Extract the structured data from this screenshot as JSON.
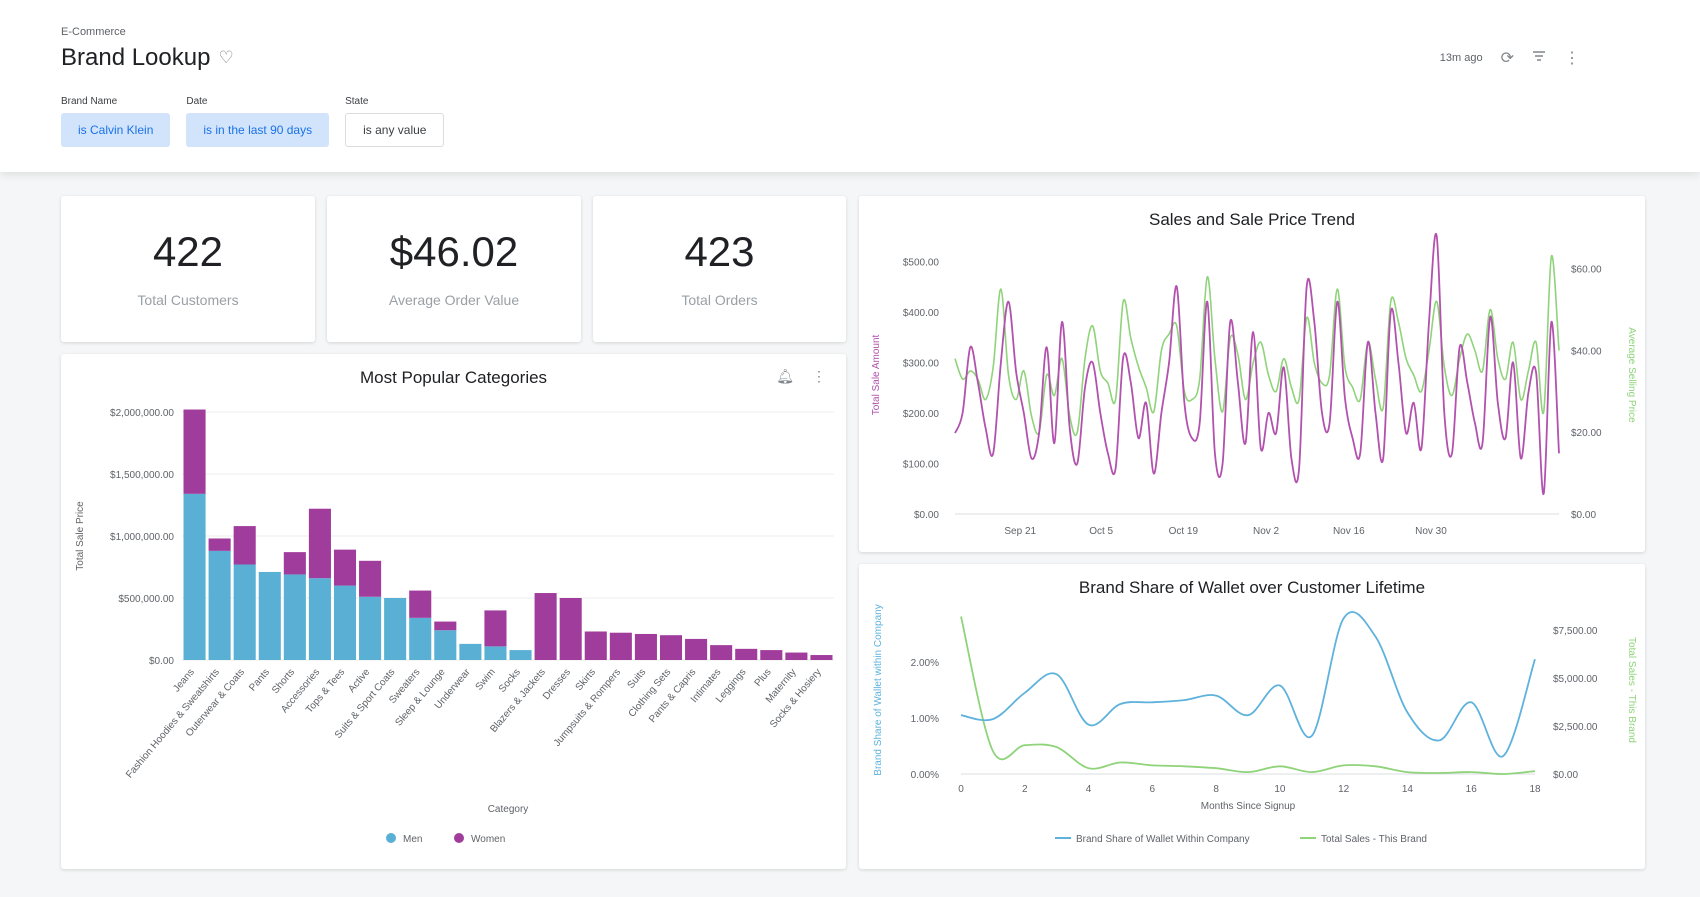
{
  "header": {
    "breadcrumb": "E-Commerce",
    "title": "Brand Lookup",
    "last_updated": "13m ago",
    "icons": {
      "favorite": "heart-outline-icon",
      "refresh": "refresh-icon",
      "filter": "filter-icon",
      "more": "more-vert-icon"
    }
  },
  "filters": [
    {
      "label": "Brand Name",
      "value": "is Calvin Klein",
      "active": true
    },
    {
      "label": "Date",
      "value": "is in the last 90 days",
      "active": true
    },
    {
      "label": "State",
      "value": "is any value",
      "active": false
    }
  ],
  "kpis": [
    {
      "value": "422",
      "label": "Total Customers"
    },
    {
      "value": "$46.02",
      "label": "Average Order Value"
    },
    {
      "value": "423",
      "label": "Total Orders"
    }
  ],
  "colors": {
    "men": "#5ab0d4",
    "women": "#a03d9c",
    "sales": "#b251ae",
    "price": "#8fd37a",
    "share": "#5eb2dc",
    "total": "#8fd37a"
  },
  "chart_data": [
    {
      "type": "bar",
      "stacked": true,
      "title": "Most Popular Categories",
      "xlabel": "Category",
      "ylabel": "Total Sale Price",
      "ylim": [
        0,
        2000000
      ],
      "yticks": [
        "$0.00",
        "$500,000.00",
        "$1,000,000.00",
        "$1,500,000.00",
        "$2,000,000.00"
      ],
      "ytick_values": [
        0,
        500000,
        1000000,
        1500000,
        2000000
      ],
      "legend": "bottom",
      "categories": [
        "Jeans",
        "Fashion Hoodies & Sweatshirts",
        "Outerwear & Coats",
        "Pants",
        "Shorts",
        "Accessories",
        "Tops & Tees",
        "Active",
        "Suits & Sport Coats",
        "Sweaters",
        "Sleep & Lounge",
        "Underwear",
        "Swim",
        "Socks",
        "Blazers & Jackets",
        "Dresses",
        "Skirts",
        "Jumpsuits & Rompers",
        "Suits",
        "Clothing Sets",
        "Pants & Capris",
        "Intimates",
        "Leggings",
        "Plus",
        "Maternity",
        "Socks & Hosiery"
      ],
      "series": [
        {
          "name": "Men",
          "values": [
            1340000,
            880000,
            770000,
            710000,
            690000,
            660000,
            600000,
            510000,
            500000,
            340000,
            240000,
            130000,
            110000,
            80000,
            0,
            0,
            0,
            0,
            0,
            0,
            0,
            0,
            0,
            0,
            0,
            0
          ]
        },
        {
          "name": "Women",
          "values": [
            680000,
            100000,
            310000,
            0,
            180000,
            560000,
            290000,
            290000,
            0,
            220000,
            70000,
            0,
            290000,
            0,
            540000,
            500000,
            230000,
            220000,
            210000,
            200000,
            170000,
            120000,
            90000,
            80000,
            60000,
            40000
          ]
        }
      ]
    },
    {
      "type": "line",
      "title": "Sales and Sale Price Trend",
      "x_tick_labels": [
        "Sep 21",
        "Oct 5",
        "Oct 19",
        "Nov 2",
        "Nov 16",
        "Nov 30"
      ],
      "ylabel": "Total Sale Amount",
      "ylim": [
        0,
        550
      ],
      "yticks": [
        "$0.00",
        "$100.00",
        "$200.00",
        "$300.00",
        "$400.00",
        "$500.00"
      ],
      "ytick_values": [
        0,
        100,
        200,
        300,
        400,
        500
      ],
      "y2label": "Average Selling Price",
      "y2lim": [
        0,
        68
      ],
      "y2ticks": [
        "$0.00",
        "$20.00",
        "$40.00",
        "$60.00"
      ],
      "y2tick_values": [
        0,
        20,
        40,
        60
      ],
      "series": [
        {
          "name": "Total Sale Amount",
          "axis": "left",
          "values": [
            160,
            200,
            330,
            260,
            170,
            120,
            300,
            420,
            280,
            200,
            110,
            160,
            330,
            140,
            380,
            170,
            100,
            250,
            300,
            200,
            120,
            90,
            310,
            260,
            150,
            220,
            80,
            200,
            300,
            450,
            220,
            150,
            180,
            420,
            120,
            100,
            380,
            260,
            140,
            360,
            130,
            200,
            160,
            290,
            110,
            90,
            450,
            380,
            200,
            180,
            420,
            230,
            150,
            120,
            340,
            200,
            110,
            400,
            300,
            160,
            220,
            130,
            380,
            550,
            200,
            120,
            330,
            260,
            180,
            140,
            390,
            220,
            150,
            300,
            110,
            240,
            280,
            40,
            380,
            120
          ]
        },
        {
          "name": "Average Selling Price",
          "axis": "right",
          "values": [
            38,
            33,
            35,
            33,
            28,
            36,
            55,
            34,
            28,
            35,
            24,
            20,
            34,
            29,
            38,
            24,
            20,
            38,
            46,
            35,
            32,
            28,
            52,
            43,
            36,
            31,
            25,
            40,
            44,
            46,
            30,
            28,
            33,
            58,
            38,
            25,
            43,
            39,
            28,
            37,
            42,
            34,
            30,
            38,
            31,
            28,
            48,
            37,
            32,
            34,
            55,
            36,
            31,
            28,
            42,
            33,
            26,
            52,
            47,
            38,
            34,
            30,
            40,
            52,
            36,
            29,
            38,
            44,
            40,
            35,
            50,
            38,
            33,
            42,
            28,
            35,
            42,
            25,
            63,
            40
          ]
        }
      ]
    },
    {
      "type": "line",
      "title": "Brand Share of Wallet over Customer Lifetime",
      "xlabel": "Months Since Signup",
      "xlim": [
        0,
        18
      ],
      "xticks": [
        0,
        2,
        4,
        6,
        8,
        10,
        12,
        14,
        16,
        18
      ],
      "ylabel": "Brand Share of Wallet within Company",
      "ylim": [
        0,
        3
      ],
      "yticks": [
        "0.00%",
        "1.00%",
        "2.00%"
      ],
      "ytick_values": [
        0,
        1,
        2
      ],
      "y2label": "Total Sales - This Brand",
      "y2lim": [
        0,
        8750
      ],
      "y2ticks": [
        "$0.00",
        "$2,500.00",
        "$5,000.00",
        "$7,500.00"
      ],
      "y2tick_values": [
        0,
        2500,
        5000,
        7500
      ],
      "legend": "bottom",
      "x": [
        0,
        1,
        2,
        3,
        4,
        5,
        6,
        7,
        8,
        9,
        10,
        11,
        12,
        13,
        14,
        15,
        16,
        17,
        18
      ],
      "series": [
        {
          "name": "Brand Share of Wallet Within Company",
          "axis": "left",
          "values": [
            1.05,
            0.98,
            1.45,
            1.78,
            0.88,
            1.25,
            1.28,
            1.32,
            1.4,
            1.05,
            1.58,
            0.68,
            2.78,
            2.45,
            1.1,
            0.6,
            1.28,
            0.32,
            2.05
          ]
        },
        {
          "name": "Total Sales - This Brand",
          "axis": "right",
          "values": [
            8200,
            1200,
            1500,
            1400,
            300,
            600,
            450,
            400,
            300,
            100,
            400,
            100,
            450,
            400,
            100,
            50,
            100,
            0,
            150
          ]
        }
      ]
    }
  ]
}
